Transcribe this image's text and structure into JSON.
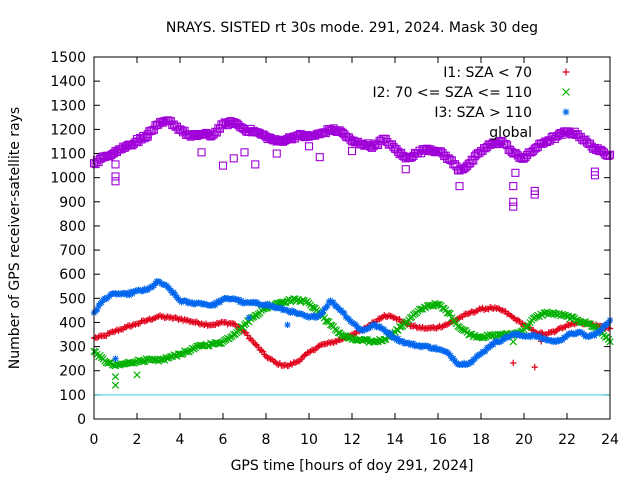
{
  "chart_data": {
    "type": "scatter",
    "title": "NRAYS. SISTED rt 30s mode. 291, 2024. Mask 30 deg",
    "xlabel": "GPS time [hours of doy 291, 2024]",
    "ylabel": "Number of GPS receiver-satellite rays",
    "xlim": [
      0,
      24
    ],
    "ylim": [
      0,
      1500
    ],
    "x_ticks": [
      0,
      2,
      4,
      6,
      8,
      10,
      12,
      14,
      16,
      18,
      20,
      22,
      24
    ],
    "y_ticks": [
      0,
      100,
      200,
      300,
      400,
      500,
      600,
      700,
      800,
      900,
      1000,
      1100,
      1200,
      1300,
      1400,
      1500
    ],
    "grid": false,
    "legend_position": "top-right",
    "threshold_line": {
      "y": 100,
      "color": "#33ccdd"
    },
    "series": [
      {
        "name": "I1: SZA < 70",
        "marker": "plus",
        "color": "#e0001a",
        "x": [
          0,
          0.5,
          1,
          1.5,
          2,
          2.5,
          3,
          3.5,
          4,
          4.5,
          5,
          5.5,
          6,
          6.5,
          7,
          7.5,
          8,
          8.5,
          9,
          9.5,
          10,
          10.5,
          11,
          11.5,
          12,
          12.5,
          13,
          13.5,
          14,
          14.5,
          15,
          15.5,
          16,
          16.5,
          17,
          17.5,
          18,
          18.5,
          19,
          19.5,
          20,
          20.5,
          21,
          21.5,
          22,
          22.5,
          23,
          23.5,
          24
        ],
        "y": [
          335,
          345,
          365,
          380,
          395,
          410,
          425,
          420,
          415,
          405,
          395,
          390,
          400,
          395,
          360,
          310,
          260,
          230,
          220,
          240,
          275,
          305,
          315,
          330,
          350,
          370,
          400,
          430,
          420,
          395,
          380,
          375,
          380,
          395,
          420,
          440,
          455,
          460,
          450,
          420,
          390,
          360,
          350,
          365,
          390,
          400,
          395,
          385,
          375
        ]
      },
      {
        "name": "I2: 70 <= SZA <= 110",
        "marker": "x",
        "color": "#00b000",
        "x": [
          0,
          0.5,
          1,
          1.5,
          2,
          2.5,
          3,
          3.5,
          4,
          4.5,
          5,
          5.5,
          6,
          6.5,
          7,
          7.5,
          8,
          8.5,
          9,
          9.5,
          10,
          10.5,
          11,
          11.5,
          12,
          12.5,
          13,
          13.5,
          14,
          14.5,
          15,
          15.5,
          16,
          16.5,
          17,
          17.5,
          18,
          18.5,
          19,
          19.5,
          20,
          20.5,
          21,
          21.5,
          22,
          22.5,
          23,
          23.5,
          24
        ],
        "y": [
          280,
          240,
          220,
          230,
          240,
          245,
          240,
          255,
          270,
          285,
          305,
          310,
          320,
          350,
          390,
          430,
          460,
          480,
          490,
          495,
          480,
          440,
          390,
          350,
          330,
          325,
          320,
          330,
          360,
          400,
          440,
          470,
          475,
          440,
          380,
          350,
          340,
          345,
          350,
          350,
          370,
          420,
          440,
          435,
          425,
          410,
          395,
          370,
          320
        ]
      },
      {
        "name": "I3: SZA > 110",
        "marker": "star",
        "color": "#0066ee",
        "x": [
          0,
          0.5,
          1,
          1.5,
          2,
          2.5,
          3,
          3.5,
          4,
          4.5,
          5,
          5.5,
          6,
          6.5,
          7,
          7.5,
          8,
          8.5,
          9,
          9.5,
          10,
          10.5,
          11,
          11.5,
          12,
          12.5,
          13,
          13.5,
          14,
          14.5,
          15,
          15.5,
          16,
          16.5,
          17,
          17.5,
          18,
          18.5,
          19,
          19.5,
          20,
          20.5,
          21,
          21.5,
          22,
          22.5,
          23,
          23.5,
          24
        ],
        "y": [
          440,
          500,
          520,
          515,
          530,
          535,
          570,
          540,
          490,
          480,
          480,
          470,
          495,
          500,
          480,
          480,
          475,
          460,
          450,
          435,
          420,
          430,
          490,
          450,
          400,
          365,
          390,
          370,
          335,
          315,
          305,
          300,
          290,
          270,
          225,
          235,
          270,
          310,
          330,
          350,
          345,
          345,
          330,
          320,
          345,
          360,
          340,
          360,
          410
        ]
      },
      {
        "name": "global",
        "marker": "square",
        "color": "#a000d8",
        "x": [
          0,
          0.5,
          1,
          1.5,
          2,
          2.5,
          3,
          3.5,
          4,
          4.5,
          5,
          5.5,
          6,
          6.5,
          7,
          7.5,
          8,
          8.5,
          9,
          9.5,
          10,
          10.5,
          11,
          11.5,
          12,
          12.5,
          13,
          13.5,
          14,
          14.5,
          15,
          15.5,
          16,
          16.5,
          17,
          17.5,
          18,
          18.5,
          19,
          19.5,
          20,
          20.5,
          21,
          21.5,
          22,
          22.5,
          23,
          23.5,
          24
        ],
        "y": [
          1060,
          1085,
          1110,
          1130,
          1150,
          1180,
          1220,
          1235,
          1200,
          1170,
          1180,
          1175,
          1220,
          1230,
          1200,
          1190,
          1170,
          1150,
          1160,
          1175,
          1170,
          1180,
          1200,
          1190,
          1150,
          1140,
          1130,
          1160,
          1120,
          1080,
          1100,
          1120,
          1110,
          1080,
          1030,
          1060,
          1110,
          1140,
          1150,
          1100,
          1080,
          1120,
          1150,
          1170,
          1190,
          1180,
          1140,
          1110,
          1095
        ]
      }
    ],
    "outliers": {
      "I1: SZA < 70": [
        [
          19.5,
          232
        ],
        [
          20.5,
          215
        ],
        [
          20.8,
          322
        ]
      ],
      "I2: 70 <= SZA <= 110": [
        [
          1,
          140
        ],
        [
          1,
          175
        ],
        [
          2,
          183
        ],
        [
          19.5,
          320
        ]
      ],
      "I3: SZA > 110": [
        [
          1,
          250
        ],
        [
          7.2,
          420
        ],
        [
          9,
          390
        ]
      ],
      "global": [
        [
          1,
          985
        ],
        [
          1,
          1005
        ],
        [
          1,
          1055
        ],
        [
          2,
          1160
        ],
        [
          2.5,
          1170
        ],
        [
          5,
          1105
        ],
        [
          6,
          1050
        ],
        [
          6.5,
          1080
        ],
        [
          7,
          1105
        ],
        [
          7.5,
          1055
        ],
        [
          8.5,
          1100
        ],
        [
          10,
          1130
        ],
        [
          10.5,
          1085
        ],
        [
          12,
          1110
        ],
        [
          14.5,
          1035
        ],
        [
          17,
          965
        ],
        [
          19.5,
          880
        ],
        [
          19.5,
          900
        ],
        [
          19.5,
          965
        ],
        [
          19.6,
          1020
        ],
        [
          20.5,
          930
        ],
        [
          20.5,
          945
        ],
        [
          23.3,
          1010
        ],
        [
          23.3,
          1025
        ],
        [
          22.2,
          1180
        ]
      ]
    }
  }
}
